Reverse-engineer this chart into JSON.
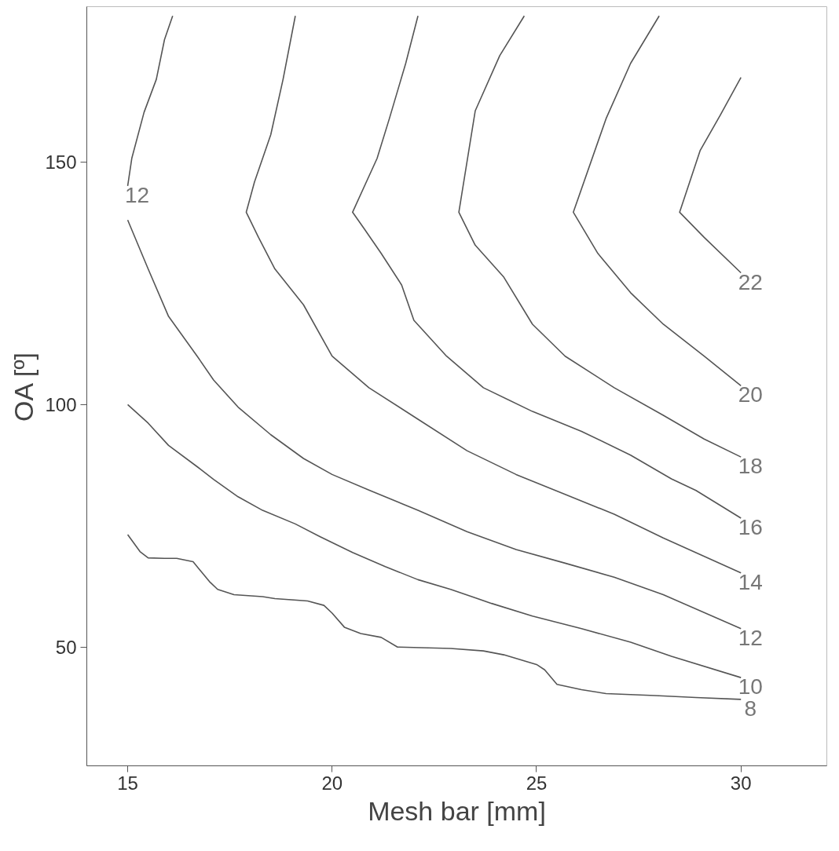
{
  "chart_data": {
    "type": "line",
    "xlabel": "Mesh bar [mm]",
    "ylabel": "OA [º]",
    "xlim": [
      14.0,
      32.1
    ],
    "ylim": [
      25.5,
      182.1
    ],
    "xticks": [
      15,
      20,
      25,
      30
    ],
    "yticks": [
      50,
      100,
      150
    ],
    "grid": false,
    "marker": "none",
    "line_style": "solid",
    "series": [
      {
        "name": "8",
        "color": "#555555",
        "x": [
          15,
          15.3,
          15.5,
          15.9,
          16.2,
          16.6,
          17.0,
          17.2,
          17.6,
          18.3,
          18.6,
          19.4,
          19.8,
          20.0,
          20.3,
          20.7,
          21.2,
          21.6,
          22.9,
          23.7,
          24.2,
          25.0,
          25.2,
          25.5,
          26.1,
          26.7,
          27.9,
          28.9,
          30
        ],
        "values": [
          73.2,
          69.7,
          68.4,
          68.3,
          68.3,
          67.6,
          63.5,
          61.9,
          60.8,
          60.4,
          60.0,
          59.5,
          58.6,
          57.0,
          54.1,
          52.8,
          52.0,
          50.0,
          49.7,
          49.2,
          48.4,
          46.4,
          45.3,
          42.3,
          41.2,
          40.4,
          40.0,
          39.6,
          39.2
        ]
      },
      {
        "name": "10",
        "color": "#555555",
        "x": [
          15,
          15.5,
          16.0,
          16.7,
          17.1,
          17.7,
          18.3,
          19.1,
          19.7,
          20.5,
          21.3,
          22.1,
          22.9,
          23.9,
          24.9,
          26.1,
          27.3,
          28.3,
          30
        ],
        "values": [
          100,
          96.2,
          91.6,
          87.2,
          84.6,
          81.0,
          78.2,
          75.4,
          72.8,
          69.5,
          66.6,
          63.9,
          61.9,
          59.0,
          56.4,
          53.8,
          51.0,
          48.1,
          43.7
        ]
      },
      {
        "name": "12",
        "color": "#555555",
        "x": [
          15,
          15.5,
          16.0,
          16.7,
          17.1,
          17.7,
          18.5,
          19.3,
          20.0,
          20.9,
          22.1,
          23.3,
          24.5,
          25.7,
          26.9,
          28.1,
          30
        ],
        "values": [
          138.1,
          128.0,
          118.2,
          110.0,
          105.1,
          99.5,
          93.8,
          88.9,
          85.6,
          82.4,
          78.2,
          73.8,
          70.1,
          67.3,
          64.4,
          60.8,
          53.8
        ]
      },
      {
        "name": "12",
        "color": "#555555",
        "x": [
          16.1,
          15.9,
          15.7,
          15.4,
          15.1,
          15
        ],
        "values": [
          180.2,
          175.3,
          167.1,
          160.3,
          150.8,
          145.1
        ]
      },
      {
        "name": "14",
        "color": "#555555",
        "x": [
          19.1,
          18.8,
          18.5,
          18.1,
          17.9,
          18.2,
          18.6,
          19.3,
          20.0,
          20.9,
          22.1,
          23.3,
          24.5,
          25.7,
          26.9,
          28.1,
          30
        ],
        "values": [
          180.2,
          167.1,
          155.7,
          145.9,
          139.7,
          134.5,
          128.0,
          120.6,
          110.0,
          103.5,
          97.0,
          90.5,
          85.6,
          81.5,
          77.4,
          72.5,
          65.3
        ]
      },
      {
        "name": "16",
        "color": "#555555",
        "x": [
          22.1,
          21.8,
          21.4,
          21.1,
          20.5,
          20.8,
          21.2,
          21.7,
          22.0,
          22.8,
          23.7,
          24.9,
          26.1,
          27.3,
          28.3,
          28.9,
          30
        ],
        "values": [
          180.2,
          170.4,
          159.0,
          150.8,
          139.7,
          136.1,
          131.2,
          124.7,
          117.4,
          110.0,
          103.5,
          98.6,
          94.5,
          89.6,
          84.7,
          82.3,
          76.6
        ]
      },
      {
        "name": "18",
        "color": "#555555",
        "x": [
          24.7,
          24.1,
          23.5,
          23.1,
          23.5,
          24.2,
          24.9,
          25.7,
          26.9,
          28.1,
          29.1,
          30
        ],
        "values": [
          180.2,
          172.0,
          160.6,
          139.7,
          132.9,
          126.3,
          116.6,
          110.0,
          103.5,
          97.8,
          92.9,
          89.2
        ]
      },
      {
        "name": "20",
        "color": "#555555",
        "x": [
          28.0,
          27.3,
          26.7,
          25.9,
          26.5,
          27.3,
          28.1,
          29.1,
          30
        ],
        "values": [
          180.2,
          170.4,
          159.0,
          139.7,
          131.2,
          123.1,
          116.6,
          110.0,
          103.9
        ]
      },
      {
        "name": "22",
        "color": "#555555",
        "x": [
          30,
          29.5,
          29.0,
          28.5,
          29.1,
          30
        ],
        "values": [
          167.5,
          159.8,
          152.4,
          139.7,
          134.5,
          127.2
        ]
      }
    ]
  }
}
